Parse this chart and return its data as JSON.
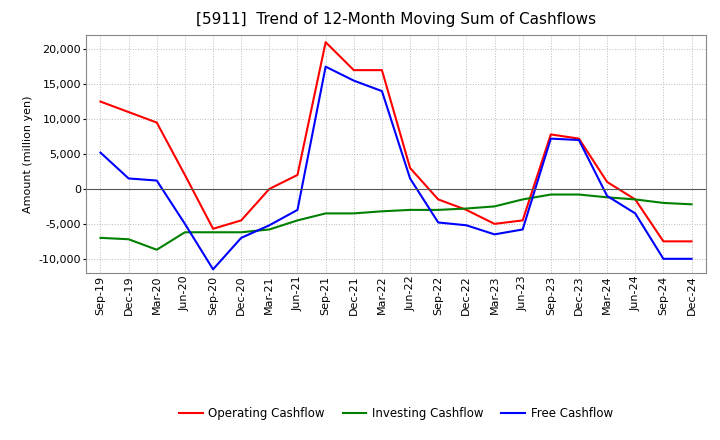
{
  "title": "[5911]  Trend of 12-Month Moving Sum of Cashflows",
  "ylabel": "Amount (million yen)",
  "x_labels": [
    "Sep-19",
    "Dec-19",
    "Mar-20",
    "Jun-20",
    "Sep-20",
    "Dec-20",
    "Mar-21",
    "Jun-21",
    "Sep-21",
    "Dec-21",
    "Mar-22",
    "Jun-22",
    "Sep-22",
    "Dec-22",
    "Mar-23",
    "Jun-23",
    "Sep-23",
    "Dec-23",
    "Mar-24",
    "Jun-24",
    "Sep-24",
    "Dec-24"
  ],
  "operating": [
    12500,
    11000,
    9500,
    2000,
    -5700,
    -4500,
    0,
    2000,
    21000,
    17000,
    17000,
    3000,
    -1500,
    -3000,
    -5000,
    -4500,
    7800,
    7200,
    1000,
    -1500,
    -7500,
    -7500
  ],
  "investing": [
    -7000,
    -7200,
    -8700,
    -6200,
    -6200,
    -6200,
    -5800,
    -4500,
    -3500,
    -3500,
    -3200,
    -3000,
    -3000,
    -2800,
    -2500,
    -1500,
    -800,
    -800,
    -1200,
    -1500,
    -2000,
    -2200
  ],
  "free": [
    5200,
    1500,
    1200,
    -5000,
    -11500,
    -7000,
    -5200,
    -3000,
    17500,
    15500,
    14000,
    1500,
    -4800,
    -5200,
    -6500,
    -5800,
    7200,
    7000,
    -1000,
    -3500,
    -10000,
    -10000
  ],
  "ylim": [
    -12000,
    22000
  ],
  "yticks": [
    -10000,
    -5000,
    0,
    5000,
    10000,
    15000,
    20000
  ],
  "operating_color": "#FF0000",
  "investing_color": "#008000",
  "free_color": "#0000FF",
  "background_color": "#FFFFFF",
  "plot_bg_color": "#FFFFFF",
  "grid_color": "#BBBBBB",
  "title_fontsize": 11,
  "label_fontsize": 8,
  "tick_fontsize": 8,
  "legend_fontsize": 8.5
}
